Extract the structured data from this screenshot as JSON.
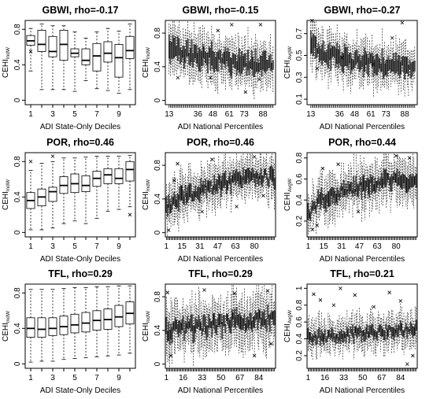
{
  "figure": {
    "background": "#ffffff",
    "box_fill": "#ffffff",
    "dense_fill": "#7a7a7a",
    "ink": "#000000"
  },
  "chart_data": [
    {
      "type": "boxplot",
      "title": "GBWI, rho=-0.17",
      "xlabel": "ADI State-Only Deciles",
      "ylabel": "CEHI",
      "ylabel_sub": "IndW",
      "xlim": [
        0.5,
        10.5
      ],
      "ylim": [
        -0.05,
        0.9
      ],
      "xticks": [
        1,
        3,
        5,
        7,
        9
      ],
      "yticks": [
        0.0,
        0.4,
        0.8
      ],
      "boxes": [
        {
          "x": 1,
          "q1": 0.62,
          "med": 0.67,
          "q3": 0.73,
          "wlo": 0.33,
          "whi": 0.81,
          "out": [
            0.55
          ]
        },
        {
          "x": 2,
          "q1": 0.55,
          "med": 0.63,
          "q3": 0.79,
          "wlo": 0.12,
          "whi": 0.86,
          "out": []
        },
        {
          "x": 3,
          "q1": 0.49,
          "med": 0.55,
          "q3": 0.72,
          "wlo": 0.12,
          "whi": 0.84,
          "out": []
        },
        {
          "x": 4,
          "q1": 0.45,
          "med": 0.63,
          "q3": 0.79,
          "wlo": 0.12,
          "whi": 0.84,
          "out": []
        },
        {
          "x": 5,
          "q1": 0.49,
          "med": 0.53,
          "q3": 0.58,
          "wlo": 0.1,
          "whi": 0.77,
          "out": []
        },
        {
          "x": 6,
          "q1": 0.4,
          "med": 0.45,
          "q3": 0.58,
          "wlo": 0.22,
          "whi": 0.7,
          "out": []
        },
        {
          "x": 7,
          "q1": 0.33,
          "med": 0.5,
          "q3": 0.64,
          "wlo": 0.13,
          "whi": 0.77,
          "out": []
        },
        {
          "x": 8,
          "q1": 0.43,
          "med": 0.53,
          "q3": 0.66,
          "wlo": 0.11,
          "whi": 0.81,
          "out": []
        },
        {
          "x": 9,
          "q1": 0.26,
          "med": 0.48,
          "q3": 0.63,
          "wlo": 0.08,
          "whi": 0.78,
          "out": []
        },
        {
          "x": 10,
          "q1": 0.47,
          "med": 0.56,
          "q3": 0.72,
          "wlo": 0.12,
          "whi": 0.86,
          "out": []
        }
      ]
    },
    {
      "type": "boxplot",
      "title": "GBWI, rho=-0.15",
      "xlabel": "ADI National Percentiles",
      "ylabel": "CEHI",
      "ylabel_sub": "IndW",
      "xlim": [
        10,
        98
      ],
      "ylim": [
        -0.05,
        0.95
      ],
      "xticks": [
        13,
        36,
        48,
        61,
        73,
        88
      ],
      "yticks": [
        0.0,
        0.4,
        0.8
      ],
      "n_cats": 84,
      "cat_start": 13,
      "center_path": [
        [
          13,
          0.62
        ],
        [
          30,
          0.55
        ],
        [
          50,
          0.5
        ],
        [
          70,
          0.42
        ],
        [
          88,
          0.45
        ]
      ],
      "spread": 0.28,
      "box_half": 0.12,
      "outliers": [
        [
          20,
          0.27
        ],
        [
          46,
          0.27
        ],
        [
          52,
          0.83
        ],
        [
          63,
          0.9
        ],
        [
          74,
          0.1
        ],
        [
          85,
          0.25
        ],
        [
          86,
          0.9
        ]
      ]
    },
    {
      "type": "boxplot",
      "title": "GBWI, rho=-0.27",
      "xlabel": "ADI National Percentiles",
      "ylabel": "CEHI",
      "ylabel_sub": "AvgW",
      "xlim": [
        10,
        98
      ],
      "ylim": [
        0.05,
        0.82
      ],
      "xticks": [
        13,
        36,
        48,
        61,
        73,
        88
      ],
      "yticks": [
        0.1,
        0.3,
        0.5,
        0.7
      ],
      "n_cats": 84,
      "cat_start": 13,
      "center_path": [
        [
          13,
          0.6
        ],
        [
          30,
          0.5
        ],
        [
          50,
          0.45
        ],
        [
          70,
          0.42
        ],
        [
          88,
          0.4
        ]
      ],
      "spread": 0.2,
      "box_half": 0.09,
      "outliers": [
        [
          14,
          0.82
        ],
        [
          18,
          0.38
        ],
        [
          38,
          0.48
        ],
        [
          63,
          0.42
        ],
        [
          78,
          0.66
        ],
        [
          86,
          0.8
        ]
      ]
    },
    {
      "type": "boxplot",
      "title": "POR, rho=0.46",
      "xlabel": "ADI State-Only Deciles",
      "ylabel": "CEHI",
      "ylabel_sub": "IndW",
      "xlim": [
        0.5,
        10.5
      ],
      "ylim": [
        -0.05,
        0.9
      ],
      "xticks": [
        1,
        3,
        5,
        7,
        9
      ],
      "yticks": [
        0.0,
        0.4,
        0.8
      ],
      "boxes": [
        {
          "x": 1,
          "q1": 0.27,
          "med": 0.36,
          "q3": 0.45,
          "wlo": 0.03,
          "whi": 0.7,
          "out": [
            0.8
          ]
        },
        {
          "x": 2,
          "q1": 0.3,
          "med": 0.4,
          "q3": 0.49,
          "wlo": 0.03,
          "whi": 0.78,
          "out": []
        },
        {
          "x": 3,
          "q1": 0.35,
          "med": 0.46,
          "q3": 0.51,
          "wlo": 0.05,
          "whi": 0.8,
          "out": [
            0.86
          ]
        },
        {
          "x": 4,
          "q1": 0.44,
          "med": 0.53,
          "q3": 0.63,
          "wlo": 0.1,
          "whi": 0.84,
          "out": []
        },
        {
          "x": 5,
          "q1": 0.45,
          "med": 0.55,
          "q3": 0.66,
          "wlo": 0.13,
          "whi": 0.84,
          "out": []
        },
        {
          "x": 6,
          "q1": 0.46,
          "med": 0.53,
          "q3": 0.64,
          "wlo": 0.1,
          "whi": 0.85,
          "out": []
        },
        {
          "x": 7,
          "q1": 0.52,
          "med": 0.61,
          "q3": 0.69,
          "wlo": 0.16,
          "whi": 0.86,
          "out": []
        },
        {
          "x": 8,
          "q1": 0.55,
          "med": 0.65,
          "q3": 0.72,
          "wlo": 0.24,
          "whi": 0.86,
          "out": []
        },
        {
          "x": 9,
          "q1": 0.55,
          "med": 0.61,
          "q3": 0.72,
          "wlo": 0.26,
          "whi": 0.86,
          "out": []
        },
        {
          "x": 10,
          "q1": 0.58,
          "med": 0.71,
          "q3": 0.8,
          "wlo": 0.29,
          "whi": 0.87,
          "out": [
            0.2
          ]
        }
      ]
    },
    {
      "type": "boxplot",
      "title": "POR, rho=0.46",
      "xlabel": "ADI National Percentiles",
      "ylabel": "CEHI",
      "ylabel_sub": "IndW",
      "xlim": [
        0,
        99
      ],
      "ylim": [
        -0.05,
        0.95
      ],
      "xticks": [
        1,
        15,
        31,
        47,
        63,
        80
      ],
      "yticks": [
        0.0,
        0.4,
        0.8
      ],
      "n_cats": 98,
      "cat_start": 1,
      "center_path": [
        [
          1,
          0.3
        ],
        [
          10,
          0.4
        ],
        [
          25,
          0.48
        ],
        [
          45,
          0.57
        ],
        [
          65,
          0.62
        ],
        [
          85,
          0.68
        ],
        [
          98,
          0.64
        ]
      ],
      "spread": 0.26,
      "box_half": 0.08,
      "outliers": [
        [
          3,
          0.03
        ],
        [
          8,
          0.62
        ],
        [
          11,
          0.82
        ],
        [
          33,
          0.25
        ],
        [
          42,
          0.87
        ],
        [
          64,
          0.31
        ],
        [
          80,
          0.9
        ],
        [
          88,
          0.44
        ]
      ]
    },
    {
      "type": "boxplot",
      "title": "POR, rho=0.44",
      "xlabel": "ADI National Percentiles",
      "ylabel": "CEHI",
      "ylabel_sub": "AvgW",
      "xlim": [
        0,
        99
      ],
      "ylim": [
        0.05,
        0.85
      ],
      "xticks": [
        1,
        15,
        31,
        47,
        63,
        80
      ],
      "yticks": [
        0.2,
        0.4,
        0.6,
        0.8
      ],
      "n_cats": 98,
      "cat_start": 1,
      "center_path": [
        [
          1,
          0.26
        ],
        [
          10,
          0.38
        ],
        [
          25,
          0.46
        ],
        [
          45,
          0.53
        ],
        [
          65,
          0.57
        ],
        [
          85,
          0.6
        ],
        [
          98,
          0.58
        ]
      ],
      "spread": 0.22,
      "box_half": 0.07,
      "outliers": [
        [
          5,
          0.12
        ],
        [
          9,
          0.16
        ],
        [
          14,
          0.7
        ],
        [
          28,
          0.74
        ],
        [
          46,
          0.29
        ],
        [
          80,
          0.82
        ],
        [
          92,
          0.8
        ]
      ]
    },
    {
      "type": "boxplot",
      "title": "TFL, rho=0.29",
      "xlabel": "ADI State-Only Deciles",
      "ylabel": "CEHI",
      "ylabel_sub": "IndW",
      "xlim": [
        0.5,
        10.5
      ],
      "ylim": [
        -0.05,
        0.9
      ],
      "xticks": [
        1,
        3,
        5,
        7,
        9
      ],
      "yticks": [
        0.0,
        0.4,
        0.8
      ],
      "boxes": [
        {
          "x": 1,
          "q1": 0.3,
          "med": 0.4,
          "q3": 0.52,
          "wlo": 0.02,
          "whi": 0.84,
          "out": []
        },
        {
          "x": 2,
          "q1": 0.3,
          "med": 0.39,
          "q3": 0.52,
          "wlo": 0.03,
          "whi": 0.84,
          "out": []
        },
        {
          "x": 3,
          "q1": 0.32,
          "med": 0.4,
          "q3": 0.52,
          "wlo": 0.03,
          "whi": 0.84,
          "out": []
        },
        {
          "x": 4,
          "q1": 0.33,
          "med": 0.42,
          "q3": 0.54,
          "wlo": 0.05,
          "whi": 0.85,
          "out": []
        },
        {
          "x": 5,
          "q1": 0.35,
          "med": 0.44,
          "q3": 0.56,
          "wlo": 0.06,
          "whi": 0.86,
          "out": []
        },
        {
          "x": 6,
          "q1": 0.36,
          "med": 0.46,
          "q3": 0.58,
          "wlo": 0.07,
          "whi": 0.86,
          "out": []
        },
        {
          "x": 7,
          "q1": 0.38,
          "med": 0.49,
          "q3": 0.6,
          "wlo": 0.08,
          "whi": 0.87,
          "out": []
        },
        {
          "x": 8,
          "q1": 0.39,
          "med": 0.5,
          "q3": 0.62,
          "wlo": 0.09,
          "whi": 0.87,
          "out": []
        },
        {
          "x": 9,
          "q1": 0.42,
          "med": 0.53,
          "q3": 0.66,
          "wlo": 0.1,
          "whi": 0.88,
          "out": []
        },
        {
          "x": 10,
          "q1": 0.45,
          "med": 0.57,
          "q3": 0.7,
          "wlo": 0.12,
          "whi": 0.88,
          "out": []
        }
      ]
    },
    {
      "type": "boxplot",
      "title": "TFL, rho=0.29",
      "xlabel": "ADI National Percentiles",
      "ylabel": "CEHI",
      "ylabel_sub": "IndW",
      "xlim": [
        0,
        99
      ],
      "ylim": [
        -0.05,
        0.95
      ],
      "xticks": [
        1,
        16,
        33,
        50,
        67,
        84
      ],
      "yticks": [
        0.0,
        0.4,
        0.8
      ],
      "n_cats": 98,
      "cat_start": 1,
      "center_path": [
        [
          1,
          0.4
        ],
        [
          30,
          0.43
        ],
        [
          60,
          0.49
        ],
        [
          98,
          0.56
        ]
      ],
      "spread": 0.34,
      "box_half": 0.09,
      "outliers": [
        [
          2,
          0.85
        ],
        [
          5,
          0.1
        ],
        [
          35,
          0.88
        ],
        [
          62,
          0.84
        ],
        [
          80,
          0.1
        ],
        [
          92,
          0.87
        ],
        [
          95,
          0.24
        ]
      ]
    },
    {
      "type": "boxplot",
      "title": "TFL, rho=0.21",
      "xlabel": "ADI National Percentiles",
      "ylabel": "CEHI",
      "ylabel_sub": "AvgW",
      "xlim": [
        0,
        99
      ],
      "ylim": [
        0.05,
        1.05
      ],
      "xticks": [
        1,
        16,
        33,
        50,
        67,
        84
      ],
      "yticks": [
        0.2,
        0.4,
        0.6,
        0.8,
        1.0
      ],
      "n_cats": 98,
      "cat_start": 1,
      "center_path": [
        [
          1,
          0.42
        ],
        [
          30,
          0.44
        ],
        [
          60,
          0.48
        ],
        [
          98,
          0.52
        ]
      ],
      "spread": 0.22,
      "box_half": 0.06,
      "outliers": [
        [
          6,
          0.93
        ],
        [
          12,
          0.86
        ],
        [
          24,
          0.8
        ],
        [
          30,
          1.0
        ],
        [
          43,
          0.92
        ],
        [
          60,
          0.78
        ],
        [
          74,
          0.95
        ],
        [
          84,
          0.85
        ],
        [
          90,
          0.1
        ],
        [
          95,
          0.2
        ]
      ]
    }
  ]
}
